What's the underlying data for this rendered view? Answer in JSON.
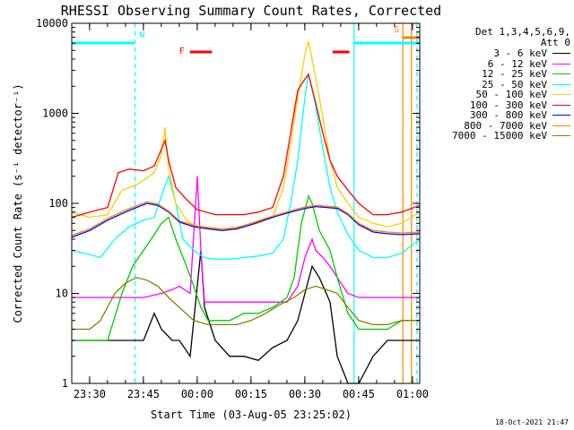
{
  "chart_data": {
    "type": "line",
    "title": "RHESSI Observing Summary Count Rates, Corrected",
    "xlabel": "Start Time (03-Aug-05 23:25:02)",
    "ylabel": "Corrected Count Rate (s⁻¹ detector⁻¹)",
    "y_scale": "log",
    "ylim": [
      1,
      10000
    ],
    "xlim_minutes_after_start": [
      0,
      97
    ],
    "x_tick_labels": [
      "23:30",
      "23:45",
      "00:00",
      "00:15",
      "00:30",
      "00:45",
      "01:00"
    ],
    "x_tick_minutes_after_start": [
      4.97,
      19.97,
      34.97,
      49.97,
      64.97,
      79.97,
      94.97
    ],
    "y_tick_labels": [
      "1",
      "10",
      "100",
      "1000",
      "10000"
    ],
    "y_tick_values": [
      1,
      10,
      100,
      1000,
      10000
    ],
    "legend_header": [
      "Det 1,3,4,5,6,9,",
      "Att 0"
    ],
    "series": [
      {
        "name": "3 - 6 keV",
        "color": "#000000",
        "points": [
          [
            0,
            3
          ],
          [
            5,
            3
          ],
          [
            10,
            3
          ],
          [
            15,
            3
          ],
          [
            20,
            3
          ],
          [
            23,
            6
          ],
          [
            25,
            4
          ],
          [
            28,
            3
          ],
          [
            30,
            3
          ],
          [
            33,
            2
          ],
          [
            36,
            30
          ],
          [
            37,
            7
          ],
          [
            40,
            3
          ],
          [
            44,
            2
          ],
          [
            48,
            2
          ],
          [
            52,
            1.8
          ],
          [
            56,
            2.5
          ],
          [
            60,
            3
          ],
          [
            63,
            5
          ],
          [
            65,
            10
          ],
          [
            67,
            20
          ],
          [
            69,
            15
          ],
          [
            72,
            8
          ],
          [
            74,
            2
          ],
          [
            77,
            1
          ],
          [
            80,
            1
          ],
          [
            84,
            2
          ],
          [
            88,
            3
          ],
          [
            92,
            3
          ],
          [
            97,
            3
          ]
        ]
      },
      {
        "name": "6 - 12 keV",
        "color": "#ff00ff",
        "points": [
          [
            0,
            9
          ],
          [
            5,
            9
          ],
          [
            10,
            9
          ],
          [
            15,
            9
          ],
          [
            20,
            9
          ],
          [
            25,
            10
          ],
          [
            28,
            11
          ],
          [
            30,
            12
          ],
          [
            33,
            10
          ],
          [
            35,
            200
          ],
          [
            36,
            30
          ],
          [
            37,
            8
          ],
          [
            40,
            8
          ],
          [
            44,
            8
          ],
          [
            48,
            8
          ],
          [
            52,
            8
          ],
          [
            56,
            8
          ],
          [
            60,
            8
          ],
          [
            63,
            12
          ],
          [
            65,
            25
          ],
          [
            67,
            40
          ],
          [
            68,
            30
          ],
          [
            70,
            25
          ],
          [
            72,
            20
          ],
          [
            74,
            15
          ],
          [
            77,
            10
          ],
          [
            80,
            9
          ],
          [
            84,
            9
          ],
          [
            88,
            9
          ],
          [
            92,
            9
          ],
          [
            97,
            9
          ]
        ]
      },
      {
        "name": "12 - 25 keV",
        "color": "#00cc00",
        "points": [
          [
            0,
            3
          ],
          [
            5,
            3
          ],
          [
            10,
            3
          ],
          [
            14,
            10
          ],
          [
            17,
            20
          ],
          [
            20,
            30
          ],
          [
            23,
            45
          ],
          [
            25,
            60
          ],
          [
            27,
            70
          ],
          [
            29,
            40
          ],
          [
            32,
            20
          ],
          [
            34,
            12
          ],
          [
            36,
            7
          ],
          [
            38,
            5
          ],
          [
            40,
            5
          ],
          [
            44,
            5
          ],
          [
            48,
            6
          ],
          [
            52,
            6
          ],
          [
            56,
            7
          ],
          [
            60,
            9
          ],
          [
            62,
            15
          ],
          [
            64,
            60
          ],
          [
            66,
            120
          ],
          [
            67,
            100
          ],
          [
            69,
            50
          ],
          [
            72,
            30
          ],
          [
            74,
            15
          ],
          [
            77,
            6
          ],
          [
            80,
            4
          ],
          [
            84,
            4
          ],
          [
            88,
            4
          ],
          [
            92,
            5
          ],
          [
            97,
            5
          ]
        ]
      },
      {
        "name": "25 - 50 keV",
        "color": "#00ffff",
        "points": [
          [
            0,
            30
          ],
          [
            5,
            27
          ],
          [
            8,
            25
          ],
          [
            12,
            40
          ],
          [
            16,
            55
          ],
          [
            20,
            65
          ],
          [
            23,
            70
          ],
          [
            25,
            120
          ],
          [
            27,
            200
          ],
          [
            29,
            100
          ],
          [
            31,
            40
          ],
          [
            34,
            30
          ],
          [
            37,
            25
          ],
          [
            40,
            24
          ],
          [
            44,
            24
          ],
          [
            48,
            25
          ],
          [
            52,
            26
          ],
          [
            56,
            28
          ],
          [
            59,
            40
          ],
          [
            61,
            100
          ],
          [
            63,
            300
          ],
          [
            65,
            1500
          ],
          [
            66,
            2800
          ],
          [
            68,
            1200
          ],
          [
            70,
            400
          ],
          [
            72,
            150
          ],
          [
            74,
            80
          ],
          [
            77,
            45
          ],
          [
            80,
            30
          ],
          [
            84,
            25
          ],
          [
            88,
            25
          ],
          [
            92,
            28
          ],
          [
            97,
            40
          ]
        ]
      },
      {
        "name": "50 - 100 keV",
        "color": "#ffcc00",
        "points": [
          [
            0,
            80
          ],
          [
            5,
            70
          ],
          [
            10,
            75
          ],
          [
            14,
            140
          ],
          [
            18,
            160
          ],
          [
            20,
            180
          ],
          [
            23,
            220
          ],
          [
            25,
            350
          ],
          [
            26,
            700
          ],
          [
            27,
            250
          ],
          [
            29,
            100
          ],
          [
            32,
            65
          ],
          [
            35,
            55
          ],
          [
            40,
            52
          ],
          [
            44,
            52
          ],
          [
            48,
            55
          ],
          [
            52,
            60
          ],
          [
            56,
            70
          ],
          [
            59,
            150
          ],
          [
            61,
            450
          ],
          [
            63,
            1500
          ],
          [
            65,
            4500
          ],
          [
            66,
            6300
          ],
          [
            68,
            2500
          ],
          [
            70,
            900
          ],
          [
            72,
            300
          ],
          [
            74,
            150
          ],
          [
            77,
            100
          ],
          [
            80,
            70
          ],
          [
            84,
            60
          ],
          [
            88,
            55
          ],
          [
            92,
            60
          ],
          [
            97,
            80
          ]
        ]
      },
      {
        "name": "100 - 300 keV",
        "color": "#ff0000",
        "points": [
          [
            0,
            70
          ],
          [
            5,
            80
          ],
          [
            10,
            90
          ],
          [
            13,
            220
          ],
          [
            16,
            240
          ],
          [
            20,
            230
          ],
          [
            23,
            260
          ],
          [
            25,
            400
          ],
          [
            26,
            500
          ],
          [
            27,
            300
          ],
          [
            29,
            150
          ],
          [
            32,
            110
          ],
          [
            35,
            85
          ],
          [
            40,
            75
          ],
          [
            44,
            75
          ],
          [
            48,
            75
          ],
          [
            52,
            80
          ],
          [
            56,
            90
          ],
          [
            59,
            200
          ],
          [
            61,
            600
          ],
          [
            63,
            1800
          ],
          [
            65,
            2400
          ],
          [
            66,
            2700
          ],
          [
            68,
            1300
          ],
          [
            70,
            600
          ],
          [
            72,
            300
          ],
          [
            74,
            200
          ],
          [
            77,
            140
          ],
          [
            80,
            100
          ],
          [
            84,
            75
          ],
          [
            88,
            75
          ],
          [
            92,
            80
          ],
          [
            97,
            95
          ]
        ]
      },
      {
        "name": "300 - 800 keV",
        "color": "#0000ff",
        "points": [
          [
            0,
            42
          ],
          [
            5,
            50
          ],
          [
            10,
            65
          ],
          [
            15,
            80
          ],
          [
            18,
            90
          ],
          [
            21,
            100
          ],
          [
            24,
            95
          ],
          [
            27,
            80
          ],
          [
            30,
            62
          ],
          [
            34,
            55
          ],
          [
            38,
            52
          ],
          [
            42,
            50
          ],
          [
            46,
            52
          ],
          [
            50,
            58
          ],
          [
            54,
            66
          ],
          [
            58,
            74
          ],
          [
            62,
            82
          ],
          [
            65,
            88
          ],
          [
            68,
            92
          ],
          [
            71,
            90
          ],
          [
            74,
            88
          ],
          [
            77,
            75
          ],
          [
            80,
            58
          ],
          [
            84,
            48
          ],
          [
            88,
            46
          ],
          [
            92,
            45
          ],
          [
            97,
            46
          ]
        ]
      },
      {
        "name": "800 - 7000 keV",
        "color": "#ff8000",
        "points": [
          [
            0,
            44
          ],
          [
            5,
            52
          ],
          [
            10,
            68
          ],
          [
            15,
            84
          ],
          [
            18,
            94
          ],
          [
            21,
            104
          ],
          [
            24,
            98
          ],
          [
            27,
            82
          ],
          [
            30,
            64
          ],
          [
            34,
            57
          ],
          [
            38,
            54
          ],
          [
            42,
            52
          ],
          [
            46,
            54
          ],
          [
            50,
            60
          ],
          [
            54,
            68
          ],
          [
            58,
            76
          ],
          [
            62,
            85
          ],
          [
            65,
            91
          ],
          [
            68,
            95
          ],
          [
            71,
            93
          ],
          [
            74,
            91
          ],
          [
            77,
            77
          ],
          [
            80,
            60
          ],
          [
            84,
            50
          ],
          [
            88,
            48
          ],
          [
            92,
            47
          ],
          [
            97,
            48
          ]
        ]
      },
      {
        "name": "7000 - 15000 keV",
        "color": "#808000",
        "points": [
          [
            0,
            4
          ],
          [
            5,
            4
          ],
          [
            8,
            5
          ],
          [
            12,
            10
          ],
          [
            15,
            13
          ],
          [
            18,
            15
          ],
          [
            21,
            14
          ],
          [
            24,
            12
          ],
          [
            27,
            9
          ],
          [
            30,
            7
          ],
          [
            34,
            5
          ],
          [
            38,
            4.5
          ],
          [
            42,
            4.5
          ],
          [
            46,
            4.5
          ],
          [
            50,
            5
          ],
          [
            54,
            6
          ],
          [
            58,
            7.5
          ],
          [
            62,
            9
          ],
          [
            65,
            11
          ],
          [
            68,
            12
          ],
          [
            71,
            11
          ],
          [
            74,
            10
          ],
          [
            77,
            7
          ],
          [
            80,
            5
          ],
          [
            84,
            4.5
          ],
          [
            88,
            4.5
          ],
          [
            92,
            5
          ],
          [
            97,
            5
          ]
        ]
      }
    ],
    "flag_bars": [
      {
        "label": "N",
        "color": "#00ffff",
        "x_start": 0,
        "x_end": 17.6
      },
      {
        "label": "F",
        "color": "#ff0000",
        "x_start": 32.9,
        "x_end": 39.1
      },
      {
        "label": "F",
        "color": "#ff0000",
        "x_start": 72.7,
        "x_end": 77.4
      },
      {
        "label": "S",
        "color": "#ff8000",
        "x_start": 92.3,
        "x_end": 97
      }
    ],
    "flag_bar_unlabeled": {
      "color": "#00ffff",
      "x_start": 78.7,
      "x_end": 97
    },
    "vertical_lines": [
      {
        "x": 17.6,
        "color": "#00ffff",
        "style": "dashed"
      },
      {
        "x": 78.7,
        "color": "#00ffff",
        "style": "solid"
      },
      {
        "x": 92.3,
        "color": "#ff8000",
        "style": "solid"
      },
      {
        "x": 94.7,
        "color": "#ff8000",
        "style": "solid"
      },
      {
        "x": 96.2,
        "color": "#00ffff",
        "style": "dashed"
      }
    ],
    "grid": false,
    "legend_position": "top-right"
  },
  "timestamp": "18-Oct-2021 21:47"
}
